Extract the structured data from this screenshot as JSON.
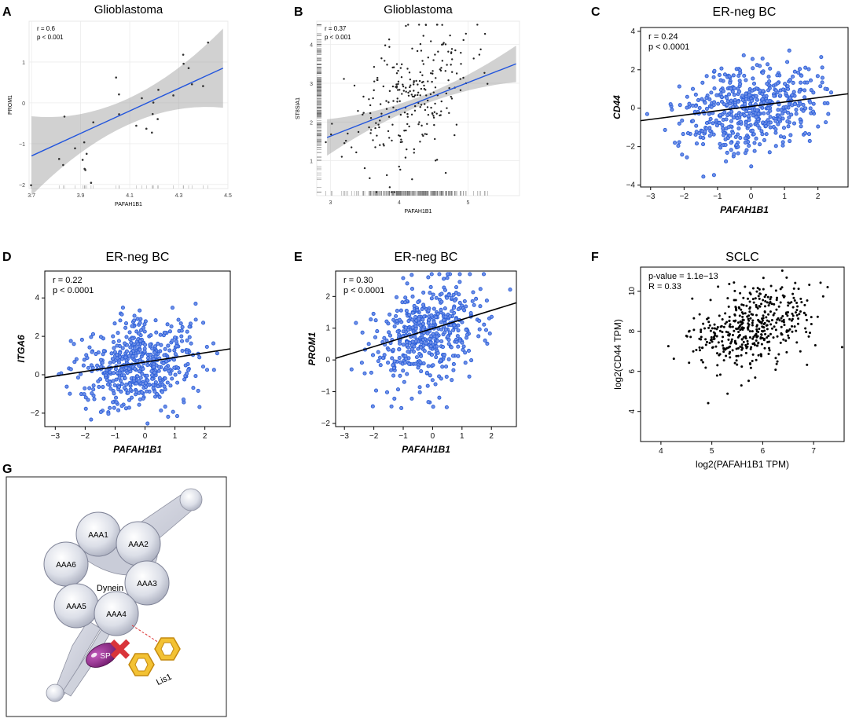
{
  "figure": {
    "panels": [
      "A",
      "B",
      "C",
      "D",
      "E",
      "F",
      "G"
    ],
    "schematic": {
      "rings": [
        "AAA1",
        "AAA2",
        "AAA3",
        "AAA4",
        "AAA5",
        "AAA6"
      ],
      "center_label": "Dynein",
      "inhibitor_label": "SP",
      "partner_label": "Lis1"
    }
  },
  "chart_data": [
    {
      "panel": "A",
      "type": "scatter",
      "style": "ggplot",
      "title": "Glioblastoma",
      "xlabel": "PAFAH1B1",
      "ylabel": "PROM1",
      "annotations": [
        "r = 0.6",
        "p < 0.001"
      ],
      "xlim": [
        3.69,
        4.5
      ],
      "ylim": [
        -2.1,
        2.0
      ],
      "xticks": [
        "3.7",
        "3.9",
        "4.1",
        "4.3",
        "4.5"
      ],
      "yticks": [
        "-2",
        "-1",
        "0",
        "1"
      ],
      "fit": {
        "x": [
          3.7,
          4.48
        ],
        "y": [
          -1.3,
          0.85
        ]
      },
      "n_points": 30,
      "point_color": "#333333",
      "line_color": "#2255dd"
    },
    {
      "panel": "B",
      "type": "scatter",
      "style": "ggplot",
      "title": "Glioblastoma",
      "xlabel": "PAFAH1B1",
      "ylabel": "ST8SIA1",
      "annotations": [
        "r = 0.37",
        "p < 0.001"
      ],
      "xlim": [
        2.8,
        5.75
      ],
      "ylim": [
        0.1,
        4.6
      ],
      "xticks": [
        "3",
        "4",
        "5"
      ],
      "yticks": [
        "1",
        "2",
        "3",
        "4"
      ],
      "fit": {
        "x": [
          2.95,
          5.7
        ],
        "y": [
          1.6,
          3.5
        ]
      },
      "n_points": 260,
      "point_color": "#222222",
      "line_color": "#2255dd"
    },
    {
      "panel": "C",
      "type": "scatter",
      "title": "ER-neg BC",
      "xlabel": "PAFAH1B1",
      "ylabel": "CD44",
      "annotations": [
        "r = 0.24",
        "p < 0.0001"
      ],
      "xlim": [
        -3.3,
        2.9
      ],
      "ylim": [
        -4.1,
        4.2
      ],
      "xticks": [
        "-3",
        "-2",
        "-1",
        "0",
        "1",
        "2"
      ],
      "yticks": [
        "-4",
        "-2",
        "0",
        "2",
        "4"
      ],
      "fit": {
        "x": [
          -3.3,
          2.9
        ],
        "y": [
          -0.65,
          0.75
        ]
      },
      "n_points": 520,
      "point_color": "#2b5fd9",
      "line_color": "#000000"
    },
    {
      "panel": "D",
      "type": "scatter",
      "title": "ER-neg BC",
      "xlabel": "PAFAH1B1",
      "ylabel": "ITGA6",
      "annotations": [
        "r = 0.22",
        "p < 0.0001"
      ],
      "xlim": [
        -3.35,
        2.85
      ],
      "ylim": [
        -2.7,
        5.4
      ],
      "xticks": [
        "-3",
        "-2",
        "-1",
        "0",
        "1",
        "2"
      ],
      "yticks": [
        "-2",
        "0",
        "2",
        "4"
      ],
      "fit": {
        "x": [
          -3.35,
          2.85
        ],
        "y": [
          -0.15,
          1.35
        ]
      },
      "n_points": 520,
      "point_color": "#2b5fd9",
      "line_color": "#000000"
    },
    {
      "panel": "E",
      "type": "scatter",
      "title": "ER-neg BC",
      "xlabel": "PAFAH1B1",
      "ylabel": "PROM1",
      "annotations": [
        "r = 0.30",
        "p < 0.0001"
      ],
      "xlim": [
        -3.3,
        2.85
      ],
      "ylim": [
        -2.1,
        2.8
      ],
      "xticks": [
        "-3",
        "-2",
        "-1",
        "0",
        "1",
        "2"
      ],
      "yticks": [
        "-2",
        "-1",
        "0",
        "1",
        "2"
      ],
      "fit": {
        "x": [
          -3.3,
          2.85
        ],
        "y": [
          0.05,
          1.8
        ]
      },
      "n_points": 480,
      "point_color": "#2b5fd9",
      "line_color": "#000000"
    },
    {
      "panel": "F",
      "type": "scatter",
      "title": "SCLC",
      "xlabel": "log2(PAFAH1B1 TPM)",
      "ylabel": "log2(CD44 TPM)",
      "annotations": [
        "p-value = 1.1e−13",
        "R = 0.33"
      ],
      "xlim": [
        3.6,
        7.6
      ],
      "ylim": [
        2.5,
        11.2
      ],
      "xticks": [
        "4",
        "5",
        "6",
        "7"
      ],
      "yticks": [
        "4",
        "6",
        "8",
        "10"
      ],
      "fit": null,
      "n_points": 450,
      "point_color": "#000000",
      "line_color": null
    }
  ]
}
